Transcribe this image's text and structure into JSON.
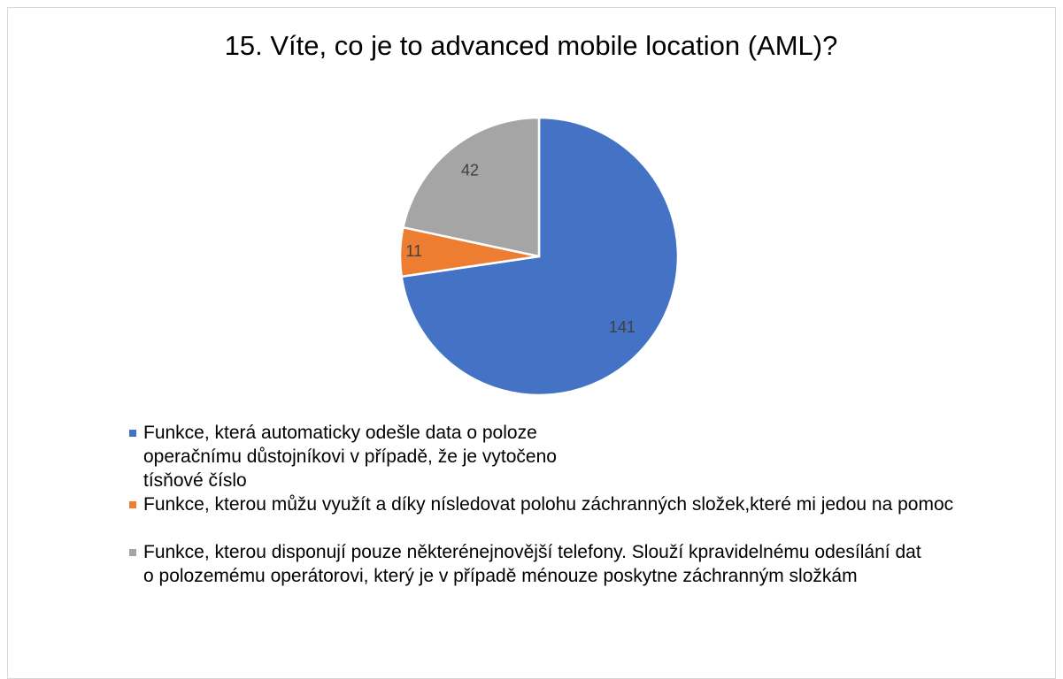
{
  "chart_data": {
    "type": "pie",
    "title": "15. Víte, co je to advanced mobile location (AML)?",
    "categories": [
      "Funkce, která automaticky odešle data o poloze operačnímu důstojníkovi v případě, že je vytočeno tísňové číslo",
      "Funkce, kterou můžu využít a díky nísledovat polohu záchranných složek,které mi jedou na pomoc",
      "Funkce, kterou disponují pouze některénejnovější telefony. Slouží kpravidelnému odesílání dat o polozemému operátorovi, který je v případě ménouze poskytne záchranným složkám"
    ],
    "values": [
      141,
      11,
      42
    ],
    "colors": [
      "#4472c4",
      "#ed7d31",
      "#a5a5a5"
    ],
    "legend": "bottom-left"
  }
}
